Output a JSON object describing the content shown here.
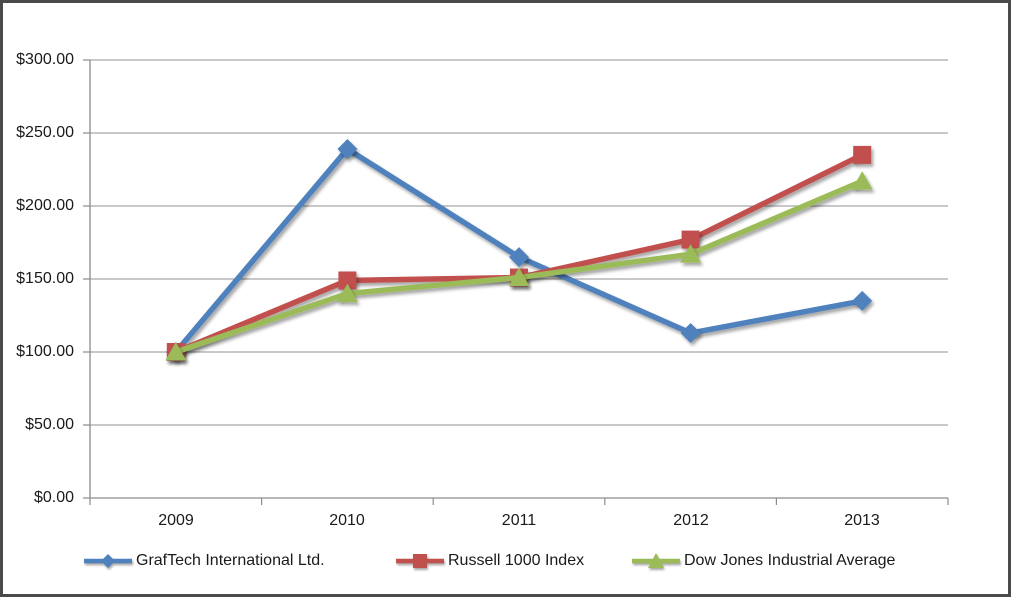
{
  "chart_data": {
    "type": "line",
    "categories": [
      "2009",
      "2010",
      "2011",
      "2012",
      "2013"
    ],
    "series": [
      {
        "name": "GrafTech International Ltd.",
        "marker": "diamond",
        "color": "#4F81BD",
        "values": [
          100,
          239,
          165,
          113,
          135
        ]
      },
      {
        "name": "Russell 1000 Index",
        "marker": "square",
        "color": "#C0504D",
        "values": [
          100,
          149,
          151,
          177,
          235
        ]
      },
      {
        "name": "Dow Jones Industrial Average",
        "marker": "triangle",
        "color": "#9BBB59",
        "values": [
          100,
          140,
          151,
          167,
          217
        ]
      }
    ],
    "xlabel": "",
    "ylabel": "",
    "ylim": [
      0,
      300
    ],
    "y_step": 50,
    "y_tick_labels": [
      "$300.00",
      "$250.00",
      "$200.00",
      "$150.00",
      "$100.00",
      "$50.00",
      "$0.00"
    ],
    "currency_format": true,
    "grid": true,
    "legend_position": "bottom",
    "axis_color": "#8c8c8c",
    "grid_color": "#a8a8a8"
  }
}
